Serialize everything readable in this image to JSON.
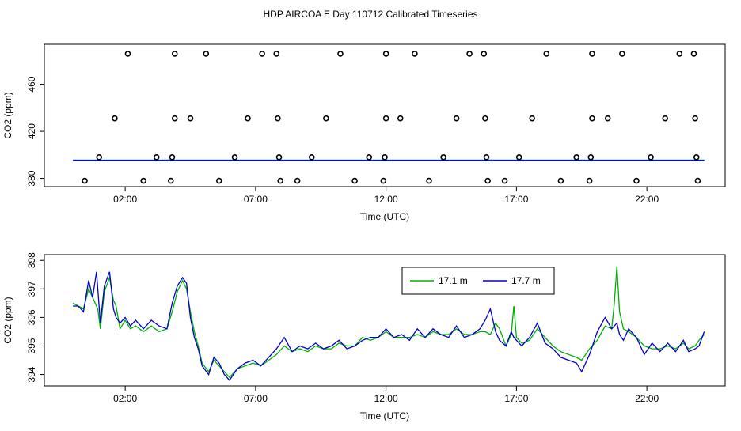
{
  "page_title": "HDP AIRCOA E  Day 110712  Calibrated Timeseries",
  "colors": {
    "series_a": "#00b000",
    "series_b": "#0000cc",
    "axis": "#000000",
    "background": "#ffffff"
  },
  "chart_data": [
    {
      "type": "scatter",
      "title": "",
      "xlabel": "Time (UTC)",
      "ylabel": "CO2 (ppm)",
      "xlim": [
        -1.1,
        25.0
      ],
      "ylim": [
        373,
        494
      ],
      "x_ticks": [
        2,
        7,
        12,
        17,
        22
      ],
      "x_tick_labels": [
        "02:00",
        "07:00",
        "12:00",
        "17:00",
        "22:00"
      ],
      "y_ticks": [
        380,
        420,
        460
      ],
      "y_tick_labels": [
        "380",
        "420",
        "460"
      ],
      "grid": false,
      "legend": "none",
      "markers": {
        "description": "calibration/standard readings (open circles)",
        "points": [
          [
            0.45,
            378
          ],
          [
            1.0,
            398
          ],
          [
            1.6,
            431
          ],
          [
            2.1,
            486
          ],
          [
            2.7,
            378
          ],
          [
            3.2,
            398
          ],
          [
            3.75,
            378
          ],
          [
            3.8,
            398
          ],
          [
            3.9,
            431
          ],
          [
            3.9,
            486
          ],
          [
            4.5,
            431
          ],
          [
            5.1,
            486
          ],
          [
            5.6,
            378
          ],
          [
            6.2,
            398
          ],
          [
            6.7,
            431
          ],
          [
            7.25,
            486
          ],
          [
            7.8,
            486
          ],
          [
            7.85,
            431
          ],
          [
            7.9,
            398
          ],
          [
            7.95,
            378
          ],
          [
            8.6,
            378
          ],
          [
            9.15,
            398
          ],
          [
            9.7,
            431
          ],
          [
            10.25,
            486
          ],
          [
            10.8,
            378
          ],
          [
            11.35,
            398
          ],
          [
            11.9,
            378
          ],
          [
            11.95,
            398
          ],
          [
            12.0,
            431
          ],
          [
            12.0,
            486
          ],
          [
            12.55,
            431
          ],
          [
            13.1,
            486
          ],
          [
            13.65,
            378
          ],
          [
            14.2,
            398
          ],
          [
            14.7,
            431
          ],
          [
            15.2,
            486
          ],
          [
            15.75,
            486
          ],
          [
            15.8,
            431
          ],
          [
            15.85,
            398
          ],
          [
            15.9,
            378
          ],
          [
            16.55,
            378
          ],
          [
            17.1,
            398
          ],
          [
            17.6,
            431
          ],
          [
            18.15,
            486
          ],
          [
            18.7,
            378
          ],
          [
            19.3,
            398
          ],
          [
            19.8,
            378
          ],
          [
            19.85,
            398
          ],
          [
            19.9,
            431
          ],
          [
            19.9,
            486
          ],
          [
            20.5,
            431
          ],
          [
            21.05,
            486
          ],
          [
            21.6,
            378
          ],
          [
            22.15,
            398
          ],
          [
            22.7,
            431
          ],
          [
            23.25,
            486
          ],
          [
            23.8,
            486
          ],
          [
            23.85,
            431
          ],
          [
            23.9,
            398
          ],
          [
            23.95,
            378
          ]
        ]
      },
      "series": [
        {
          "name": "17.1 m",
          "color": "#00b000",
          "level": 395.5
        },
        {
          "name": "17.7 m",
          "color": "#0000cc",
          "level": 395.2
        }
      ]
    },
    {
      "type": "line",
      "title": "",
      "xlabel": "Time (UTC)",
      "ylabel": "CO2 (ppm)",
      "xlim": [
        -1.1,
        25.0
      ],
      "ylim": [
        393.6,
        398.2
      ],
      "x_ticks": [
        2,
        7,
        12,
        17,
        22
      ],
      "x_tick_labels": [
        "02:00",
        "07:00",
        "12:00",
        "17:00",
        "22:00"
      ],
      "y_ticks": [
        394,
        395,
        396,
        397,
        398
      ],
      "y_tick_labels": [
        "394",
        "395",
        "396",
        "397",
        "398"
      ],
      "grid": false,
      "legend": "top-center",
      "series": [
        {
          "name": "17.1 m",
          "color": "#00b000",
          "points": [
            [
              0.0,
              396.5
            ],
            [
              0.2,
              396.4
            ],
            [
              0.4,
              396.3
            ],
            [
              0.6,
              397.0
            ],
            [
              0.8,
              396.6
            ],
            [
              0.95,
              396.3
            ],
            [
              1.05,
              395.6
            ],
            [
              1.2,
              396.9
            ],
            [
              1.4,
              397.4
            ],
            [
              1.55,
              396.6
            ],
            [
              1.65,
              396.4
            ],
            [
              1.8,
              395.6
            ],
            [
              2.0,
              395.9
            ],
            [
              2.2,
              395.6
            ],
            [
              2.4,
              395.7
            ],
            [
              2.7,
              395.5
            ],
            [
              3.0,
              395.7
            ],
            [
              3.3,
              395.5
            ],
            [
              3.6,
              395.6
            ],
            [
              3.8,
              396.2
            ],
            [
              4.0,
              396.9
            ],
            [
              4.2,
              397.3
            ],
            [
              4.35,
              397.0
            ],
            [
              4.5,
              396.2
            ],
            [
              4.65,
              395.5
            ],
            [
              4.8,
              395.0
            ],
            [
              4.95,
              394.4
            ],
            [
              5.2,
              394.1
            ],
            [
              5.4,
              394.5
            ],
            [
              5.6,
              394.3
            ],
            [
              5.8,
              394.1
            ],
            [
              6.0,
              393.9
            ],
            [
              6.3,
              394.2
            ],
            [
              6.6,
              394.3
            ],
            [
              6.9,
              394.4
            ],
            [
              7.2,
              394.3
            ],
            [
              7.5,
              394.5
            ],
            [
              7.8,
              394.7
            ],
            [
              8.1,
              395.0
            ],
            [
              8.4,
              394.8
            ],
            [
              8.7,
              394.9
            ],
            [
              9.0,
              394.8
            ],
            [
              9.3,
              395.0
            ],
            [
              9.6,
              394.9
            ],
            [
              9.9,
              394.9
            ],
            [
              10.2,
              395.1
            ],
            [
              10.5,
              395.0
            ],
            [
              10.8,
              395.0
            ],
            [
              11.1,
              395.3
            ],
            [
              11.4,
              395.2
            ],
            [
              11.7,
              395.3
            ],
            [
              12.0,
              395.5
            ],
            [
              12.3,
              395.3
            ],
            [
              12.6,
              395.3
            ],
            [
              12.9,
              395.3
            ],
            [
              13.2,
              395.4
            ],
            [
              13.5,
              395.3
            ],
            [
              13.8,
              395.5
            ],
            [
              14.1,
              395.4
            ],
            [
              14.4,
              395.4
            ],
            [
              14.7,
              395.6
            ],
            [
              15.0,
              395.4
            ],
            [
              15.3,
              395.4
            ],
            [
              15.6,
              395.5
            ],
            [
              15.8,
              395.5
            ],
            [
              16.0,
              395.4
            ],
            [
              16.2,
              395.8
            ],
            [
              16.35,
              395.6
            ],
            [
              16.6,
              395.0
            ],
            [
              16.8,
              395.4
            ],
            [
              16.9,
              396.4
            ],
            [
              17.0,
              395.3
            ],
            [
              17.2,
              395.1
            ],
            [
              17.5,
              395.2
            ],
            [
              17.8,
              395.6
            ],
            [
              18.1,
              395.3
            ],
            [
              18.4,
              395.0
            ],
            [
              18.7,
              394.8
            ],
            [
              19.0,
              394.7
            ],
            [
              19.3,
              394.6
            ],
            [
              19.5,
              394.5
            ],
            [
              19.8,
              394.9
            ],
            [
              20.1,
              395.2
            ],
            [
              20.4,
              395.7
            ],
            [
              20.65,
              395.6
            ],
            [
              20.75,
              396.5
            ],
            [
              20.85,
              397.8
            ],
            [
              20.95,
              396.2
            ],
            [
              21.1,
              395.6
            ],
            [
              21.3,
              395.5
            ],
            [
              21.6,
              395.3
            ],
            [
              21.9,
              395.0
            ],
            [
              22.2,
              394.9
            ],
            [
              22.5,
              394.9
            ],
            [
              22.8,
              395.0
            ],
            [
              23.1,
              394.9
            ],
            [
              23.4,
              395.1
            ],
            [
              23.6,
              394.9
            ],
            [
              23.85,
              395.0
            ],
            [
              24.0,
              395.2
            ],
            [
              24.2,
              395.4
            ]
          ]
        },
        {
          "name": "17.7 m",
          "color": "#0000cc",
          "points": [
            [
              0.0,
              396.4
            ],
            [
              0.2,
              396.4
            ],
            [
              0.4,
              396.2
            ],
            [
              0.6,
              397.3
            ],
            [
              0.75,
              396.7
            ],
            [
              0.9,
              397.6
            ],
            [
              1.05,
              395.8
            ],
            [
              1.2,
              397.1
            ],
            [
              1.4,
              397.6
            ],
            [
              1.55,
              396.3
            ],
            [
              1.65,
              396.0
            ],
            [
              1.8,
              395.8
            ],
            [
              2.0,
              396.0
            ],
            [
              2.2,
              395.7
            ],
            [
              2.4,
              395.9
            ],
            [
              2.7,
              395.6
            ],
            [
              3.0,
              395.9
            ],
            [
              3.3,
              395.7
            ],
            [
              3.6,
              395.6
            ],
            [
              3.8,
              396.5
            ],
            [
              4.0,
              397.1
            ],
            [
              4.2,
              397.4
            ],
            [
              4.35,
              397.2
            ],
            [
              4.5,
              396.0
            ],
            [
              4.65,
              395.3
            ],
            [
              4.8,
              394.9
            ],
            [
              4.95,
              394.3
            ],
            [
              5.2,
              394.0
            ],
            [
              5.4,
              394.6
            ],
            [
              5.6,
              394.4
            ],
            [
              5.8,
              394.0
            ],
            [
              6.0,
              393.8
            ],
            [
              6.3,
              394.2
            ],
            [
              6.6,
              394.4
            ],
            [
              6.9,
              394.5
            ],
            [
              7.2,
              394.3
            ],
            [
              7.5,
              394.6
            ],
            [
              7.8,
              394.9
            ],
            [
              8.1,
              395.3
            ],
            [
              8.4,
              394.8
            ],
            [
              8.7,
              395.0
            ],
            [
              9.0,
              394.9
            ],
            [
              9.3,
              395.1
            ],
            [
              9.6,
              394.9
            ],
            [
              9.9,
              395.0
            ],
            [
              10.2,
              395.2
            ],
            [
              10.5,
              394.9
            ],
            [
              10.8,
              395.0
            ],
            [
              11.1,
              395.2
            ],
            [
              11.4,
              395.3
            ],
            [
              11.7,
              395.3
            ],
            [
              12.0,
              395.6
            ],
            [
              12.3,
              395.3
            ],
            [
              12.6,
              395.4
            ],
            [
              12.9,
              395.2
            ],
            [
              13.2,
              395.6
            ],
            [
              13.5,
              395.3
            ],
            [
              13.8,
              395.6
            ],
            [
              14.1,
              395.4
            ],
            [
              14.4,
              395.3
            ],
            [
              14.7,
              395.7
            ],
            [
              15.0,
              395.3
            ],
            [
              15.3,
              395.4
            ],
            [
              15.6,
              395.6
            ],
            [
              15.8,
              395.9
            ],
            [
              16.0,
              396.3
            ],
            [
              16.2,
              395.5
            ],
            [
              16.35,
              395.2
            ],
            [
              16.6,
              395.0
            ],
            [
              16.8,
              395.5
            ],
            [
              16.9,
              395.3
            ],
            [
              17.0,
              395.2
            ],
            [
              17.2,
              395.0
            ],
            [
              17.5,
              395.3
            ],
            [
              17.8,
              395.8
            ],
            [
              18.1,
              395.1
            ],
            [
              18.4,
              394.9
            ],
            [
              18.7,
              394.6
            ],
            [
              19.0,
              394.5
            ],
            [
              19.3,
              394.4
            ],
            [
              19.5,
              394.1
            ],
            [
              19.8,
              394.7
            ],
            [
              20.1,
              395.5
            ],
            [
              20.4,
              396.0
            ],
            [
              20.65,
              395.6
            ],
            [
              20.75,
              395.7
            ],
            [
              20.85,
              395.8
            ],
            [
              20.95,
              395.4
            ],
            [
              21.1,
              395.2
            ],
            [
              21.3,
              395.6
            ],
            [
              21.6,
              395.3
            ],
            [
              21.9,
              394.7
            ],
            [
              22.2,
              395.1
            ],
            [
              22.5,
              394.8
            ],
            [
              22.8,
              395.1
            ],
            [
              23.1,
              394.8
            ],
            [
              23.4,
              395.2
            ],
            [
              23.6,
              394.8
            ],
            [
              23.85,
              394.9
            ],
            [
              24.0,
              395.0
            ],
            [
              24.2,
              395.5
            ]
          ]
        }
      ]
    }
  ]
}
